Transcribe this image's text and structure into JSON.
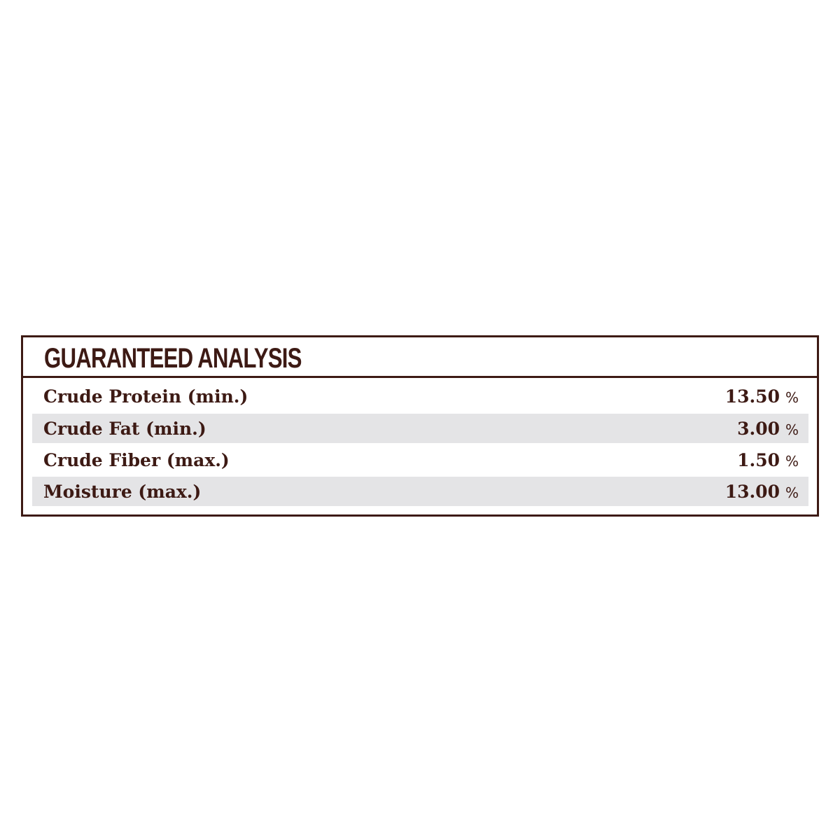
{
  "title": "GUARANTEED ANALYSIS",
  "rows": [
    {
      "label": "Crude Protein (min.)",
      "value": "13.50",
      "unit": "%"
    },
    {
      "label": "Crude Fat (min.)",
      "value": "3.00",
      "unit": "%"
    },
    {
      "label": "Crude Fiber (max.)",
      "value": "1.50",
      "unit": "%"
    },
    {
      "label": "Moisture (max.)",
      "value": "13.00",
      "unit": "%"
    }
  ],
  "colors": {
    "text": "#3d1a14",
    "shade": "#e4e4e6"
  }
}
